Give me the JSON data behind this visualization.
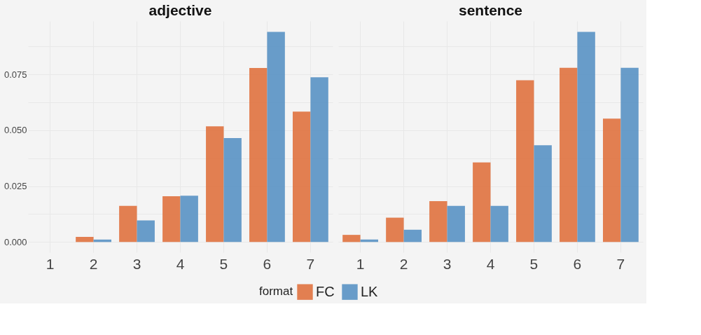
{
  "chart_data": [
    {
      "type": "bar",
      "title": "adjective",
      "categories": [
        "1",
        "2",
        "3",
        "4",
        "5",
        "6",
        "7"
      ],
      "series": [
        {
          "name": "FC",
          "color": "#e07848",
          "values": [
            0,
            0.0023,
            0.0162,
            0.0205,
            0.0518,
            0.0779,
            0.0584
          ]
        },
        {
          "name": "LK",
          "color": "#6097c6",
          "values": [
            0,
            0.0011,
            0.0097,
            0.0207,
            0.0465,
            0.094,
            0.0737
          ]
        }
      ],
      "ylim": [
        -0.0046,
        0.0989
      ],
      "yticks": [
        {
          "value": 0,
          "label": "0.000"
        },
        {
          "value": 0.0125,
          "label": null
        },
        {
          "value": 0.025,
          "label": "0.025"
        },
        {
          "value": 0.0375,
          "label": null
        },
        {
          "value": 0.05,
          "label": "0.050"
        },
        {
          "value": 0.0625,
          "label": null
        },
        {
          "value": 0.075,
          "label": "0.075"
        },
        {
          "value": 0.0875,
          "label": null
        }
      ],
      "grid": true,
      "legend": "bottom",
      "legend_title": "format"
    },
    {
      "type": "bar",
      "title": "sentence",
      "categories": [
        "1",
        "2",
        "3",
        "4",
        "5",
        "6",
        "7"
      ],
      "series": [
        {
          "name": "FC",
          "color": "#e07848",
          "values": [
            0.0032,
            0.0109,
            0.0183,
            0.0356,
            0.0724,
            0.078,
            0.0552
          ]
        },
        {
          "name": "LK",
          "color": "#6097c6",
          "values": [
            0.0011,
            0.0055,
            0.0162,
            0.0162,
            0.0433,
            0.094,
            0.078
          ]
        }
      ],
      "ylim": [
        -0.0046,
        0.0989
      ],
      "yticks": [
        {
          "value": 0,
          "label": null
        },
        {
          "value": 0.0125,
          "label": null
        },
        {
          "value": 0.025,
          "label": null
        },
        {
          "value": 0.0375,
          "label": null
        },
        {
          "value": 0.05,
          "label": null
        },
        {
          "value": 0.0625,
          "label": null
        },
        {
          "value": 0.075,
          "label": null
        },
        {
          "value": 0.0875,
          "label": null
        }
      ],
      "grid": true,
      "tick_labels": "x"
    }
  ]
}
